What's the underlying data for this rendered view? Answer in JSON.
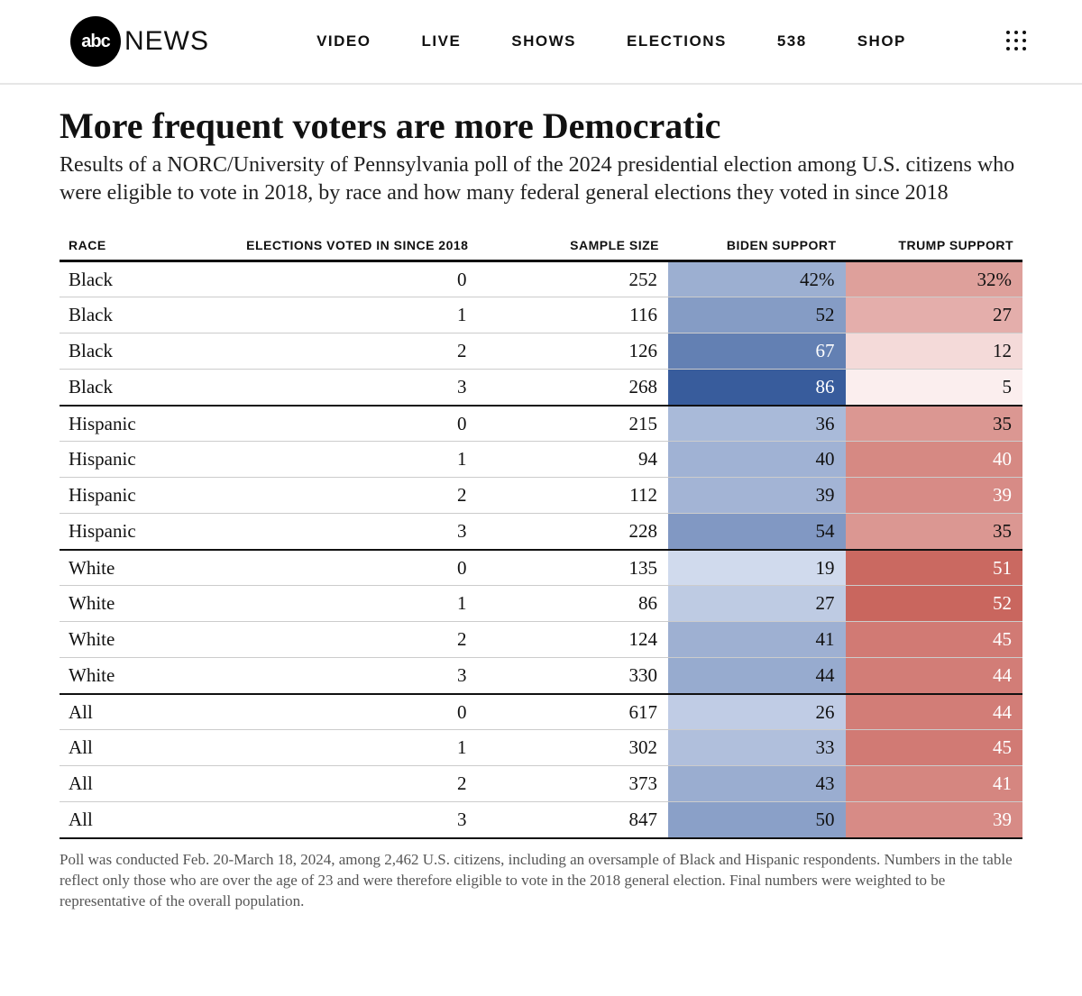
{
  "nav": {
    "logo_circle": "abc",
    "logo_text": "NEWS",
    "items": [
      "VIDEO",
      "LIVE",
      "SHOWS",
      "ELECTIONS",
      "538",
      "SHOP"
    ]
  },
  "chart": {
    "title": "More frequent voters are more Democratic",
    "subtitle": "Results of a NORC/University of Pennsylvania poll of the 2024 presidential election among U.S. citizens who were eligible to vote in 2018, by race and how many federal general elections they voted in since 2018",
    "columns": [
      "RACE",
      "ELECTIONS VOTED IN SINCE 2018",
      "SAMPLE SIZE",
      "BIDEN SUPPORT",
      "TRUMP SUPPORT"
    ],
    "footnote": "Poll was conducted Feb. 20-March 18, 2024, among 2,462 U.S. citizens, including an oversample of Black and Hispanic respondents. Numbers in the table reflect only those who are over the age of 23 and were therefore eligible to vote in the 2018 general election. Final numbers were weighted to be representative of the overall population.",
    "heat_blue_low": "#d9e1f2",
    "heat_blue_high": "#2f5597",
    "heat_red_low": "#fbeeee",
    "heat_red_high": "#c65d55",
    "groups": [
      {
        "rows": [
          {
            "race": "Black",
            "elections": 0,
            "sample": 252,
            "biden": "42%",
            "trump": "32%",
            "b": 42,
            "t": 32
          },
          {
            "race": "Black",
            "elections": 1,
            "sample": 116,
            "biden": "52",
            "trump": "27",
            "b": 52,
            "t": 27
          },
          {
            "race": "Black",
            "elections": 2,
            "sample": 126,
            "biden": "67",
            "trump": "12",
            "b": 67,
            "t": 12
          },
          {
            "race": "Black",
            "elections": 3,
            "sample": 268,
            "biden": "86",
            "trump": "5",
            "b": 86,
            "t": 5
          }
        ]
      },
      {
        "rows": [
          {
            "race": "Hispanic",
            "elections": 0,
            "sample": 215,
            "biden": "36",
            "trump": "35",
            "b": 36,
            "t": 35
          },
          {
            "race": "Hispanic",
            "elections": 1,
            "sample": 94,
            "biden": "40",
            "trump": "40",
            "b": 40,
            "t": 40
          },
          {
            "race": "Hispanic",
            "elections": 2,
            "sample": 112,
            "biden": "39",
            "trump": "39",
            "b": 39,
            "t": 39
          },
          {
            "race": "Hispanic",
            "elections": 3,
            "sample": 228,
            "biden": "54",
            "trump": "35",
            "b": 54,
            "t": 35
          }
        ]
      },
      {
        "rows": [
          {
            "race": "White",
            "elections": 0,
            "sample": 135,
            "biden": "19",
            "trump": "51",
            "b": 19,
            "t": 51
          },
          {
            "race": "White",
            "elections": 1,
            "sample": 86,
            "biden": "27",
            "trump": "52",
            "b": 27,
            "t": 52
          },
          {
            "race": "White",
            "elections": 2,
            "sample": 124,
            "biden": "41",
            "trump": "45",
            "b": 41,
            "t": 45
          },
          {
            "race": "White",
            "elections": 3,
            "sample": 330,
            "biden": "44",
            "trump": "44",
            "b": 44,
            "t": 44
          }
        ]
      },
      {
        "rows": [
          {
            "race": "All",
            "elections": 0,
            "sample": 617,
            "biden": "26",
            "trump": "44",
            "b": 26,
            "t": 44
          },
          {
            "race": "All",
            "elections": 1,
            "sample": 302,
            "biden": "33",
            "trump": "45",
            "b": 33,
            "t": 45
          },
          {
            "race": "All",
            "elections": 2,
            "sample": 373,
            "biden": "43",
            "trump": "41",
            "b": 43,
            "t": 41
          },
          {
            "race": "All",
            "elections": 3,
            "sample": 847,
            "biden": "50",
            "trump": "39",
            "b": 50,
            "t": 39
          }
        ]
      }
    ]
  }
}
